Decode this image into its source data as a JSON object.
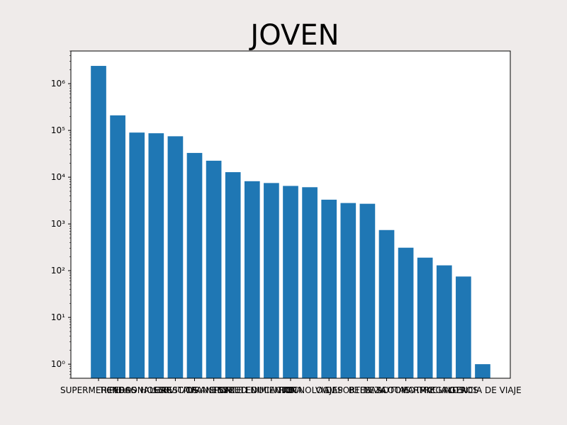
{
  "chart_data": {
    "type": "bar",
    "title": "JOVEN",
    "xlabel": "",
    "ylabel": "",
    "yscale": "log",
    "ylim": [
      0.5,
      5000000
    ],
    "grid": false,
    "bar_color": "#1f77b4",
    "background_color": "#efebea",
    "categories": [
      "SUPERMERCADOS",
      "TIENDAS",
      "PERSONALES",
      "HOGAR",
      "SERVICIOS",
      "RESTAURANTES",
      "TRANSPORTE",
      "SALUD",
      "ENTRETENIMIENTO",
      "EDUCACION",
      "ROPA",
      "TECNOLOGIA",
      "VIAJES",
      "DEPORTES",
      "BELLEZA",
      "MASCOTAS",
      "AUTOMOTRIZ",
      "FARMACIA",
      "REGALOS",
      "OTROS",
      "AGENCIA DE VIAJE"
    ],
    "values": [
      2400000,
      210000,
      90000,
      87000,
      75000,
      33000,
      22500,
      12800,
      8200,
      7500,
      6500,
      6100,
      3300,
      2800,
      2700,
      740,
      310,
      190,
      130,
      75,
      1
    ],
    "yticks": [
      {
        "value": 1,
        "label": "10⁰"
      },
      {
        "value": 10,
        "label": "10¹"
      },
      {
        "value": 100,
        "label": "10²"
      },
      {
        "value": 1000,
        "label": "10³"
      },
      {
        "value": 10000,
        "label": "10⁴"
      },
      {
        "value": 100000,
        "label": "10⁵"
      },
      {
        "value": 1000000,
        "label": "10⁶"
      }
    ]
  }
}
